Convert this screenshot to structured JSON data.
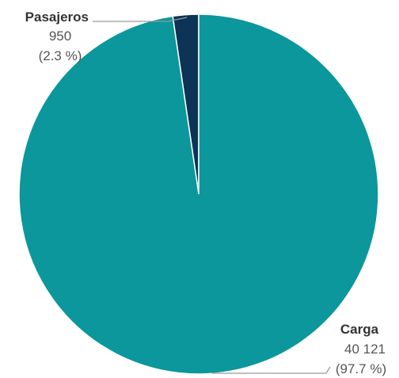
{
  "chart_data": {
    "type": "pie",
    "title": "",
    "slices": [
      {
        "name": "Pasajeros",
        "value": 950,
        "value_label": "950",
        "percent_label": "(2.3 %)",
        "color": "#0d3456"
      },
      {
        "name": "Carga",
        "value": 40121,
        "value_label": "40 121",
        "percent_label": "(97.7 %)",
        "color": "#0b979b"
      }
    ],
    "start": "12 o'clock",
    "direction": "counter-clockwise",
    "legend": "none",
    "labels": "outside with leader lines"
  }
}
